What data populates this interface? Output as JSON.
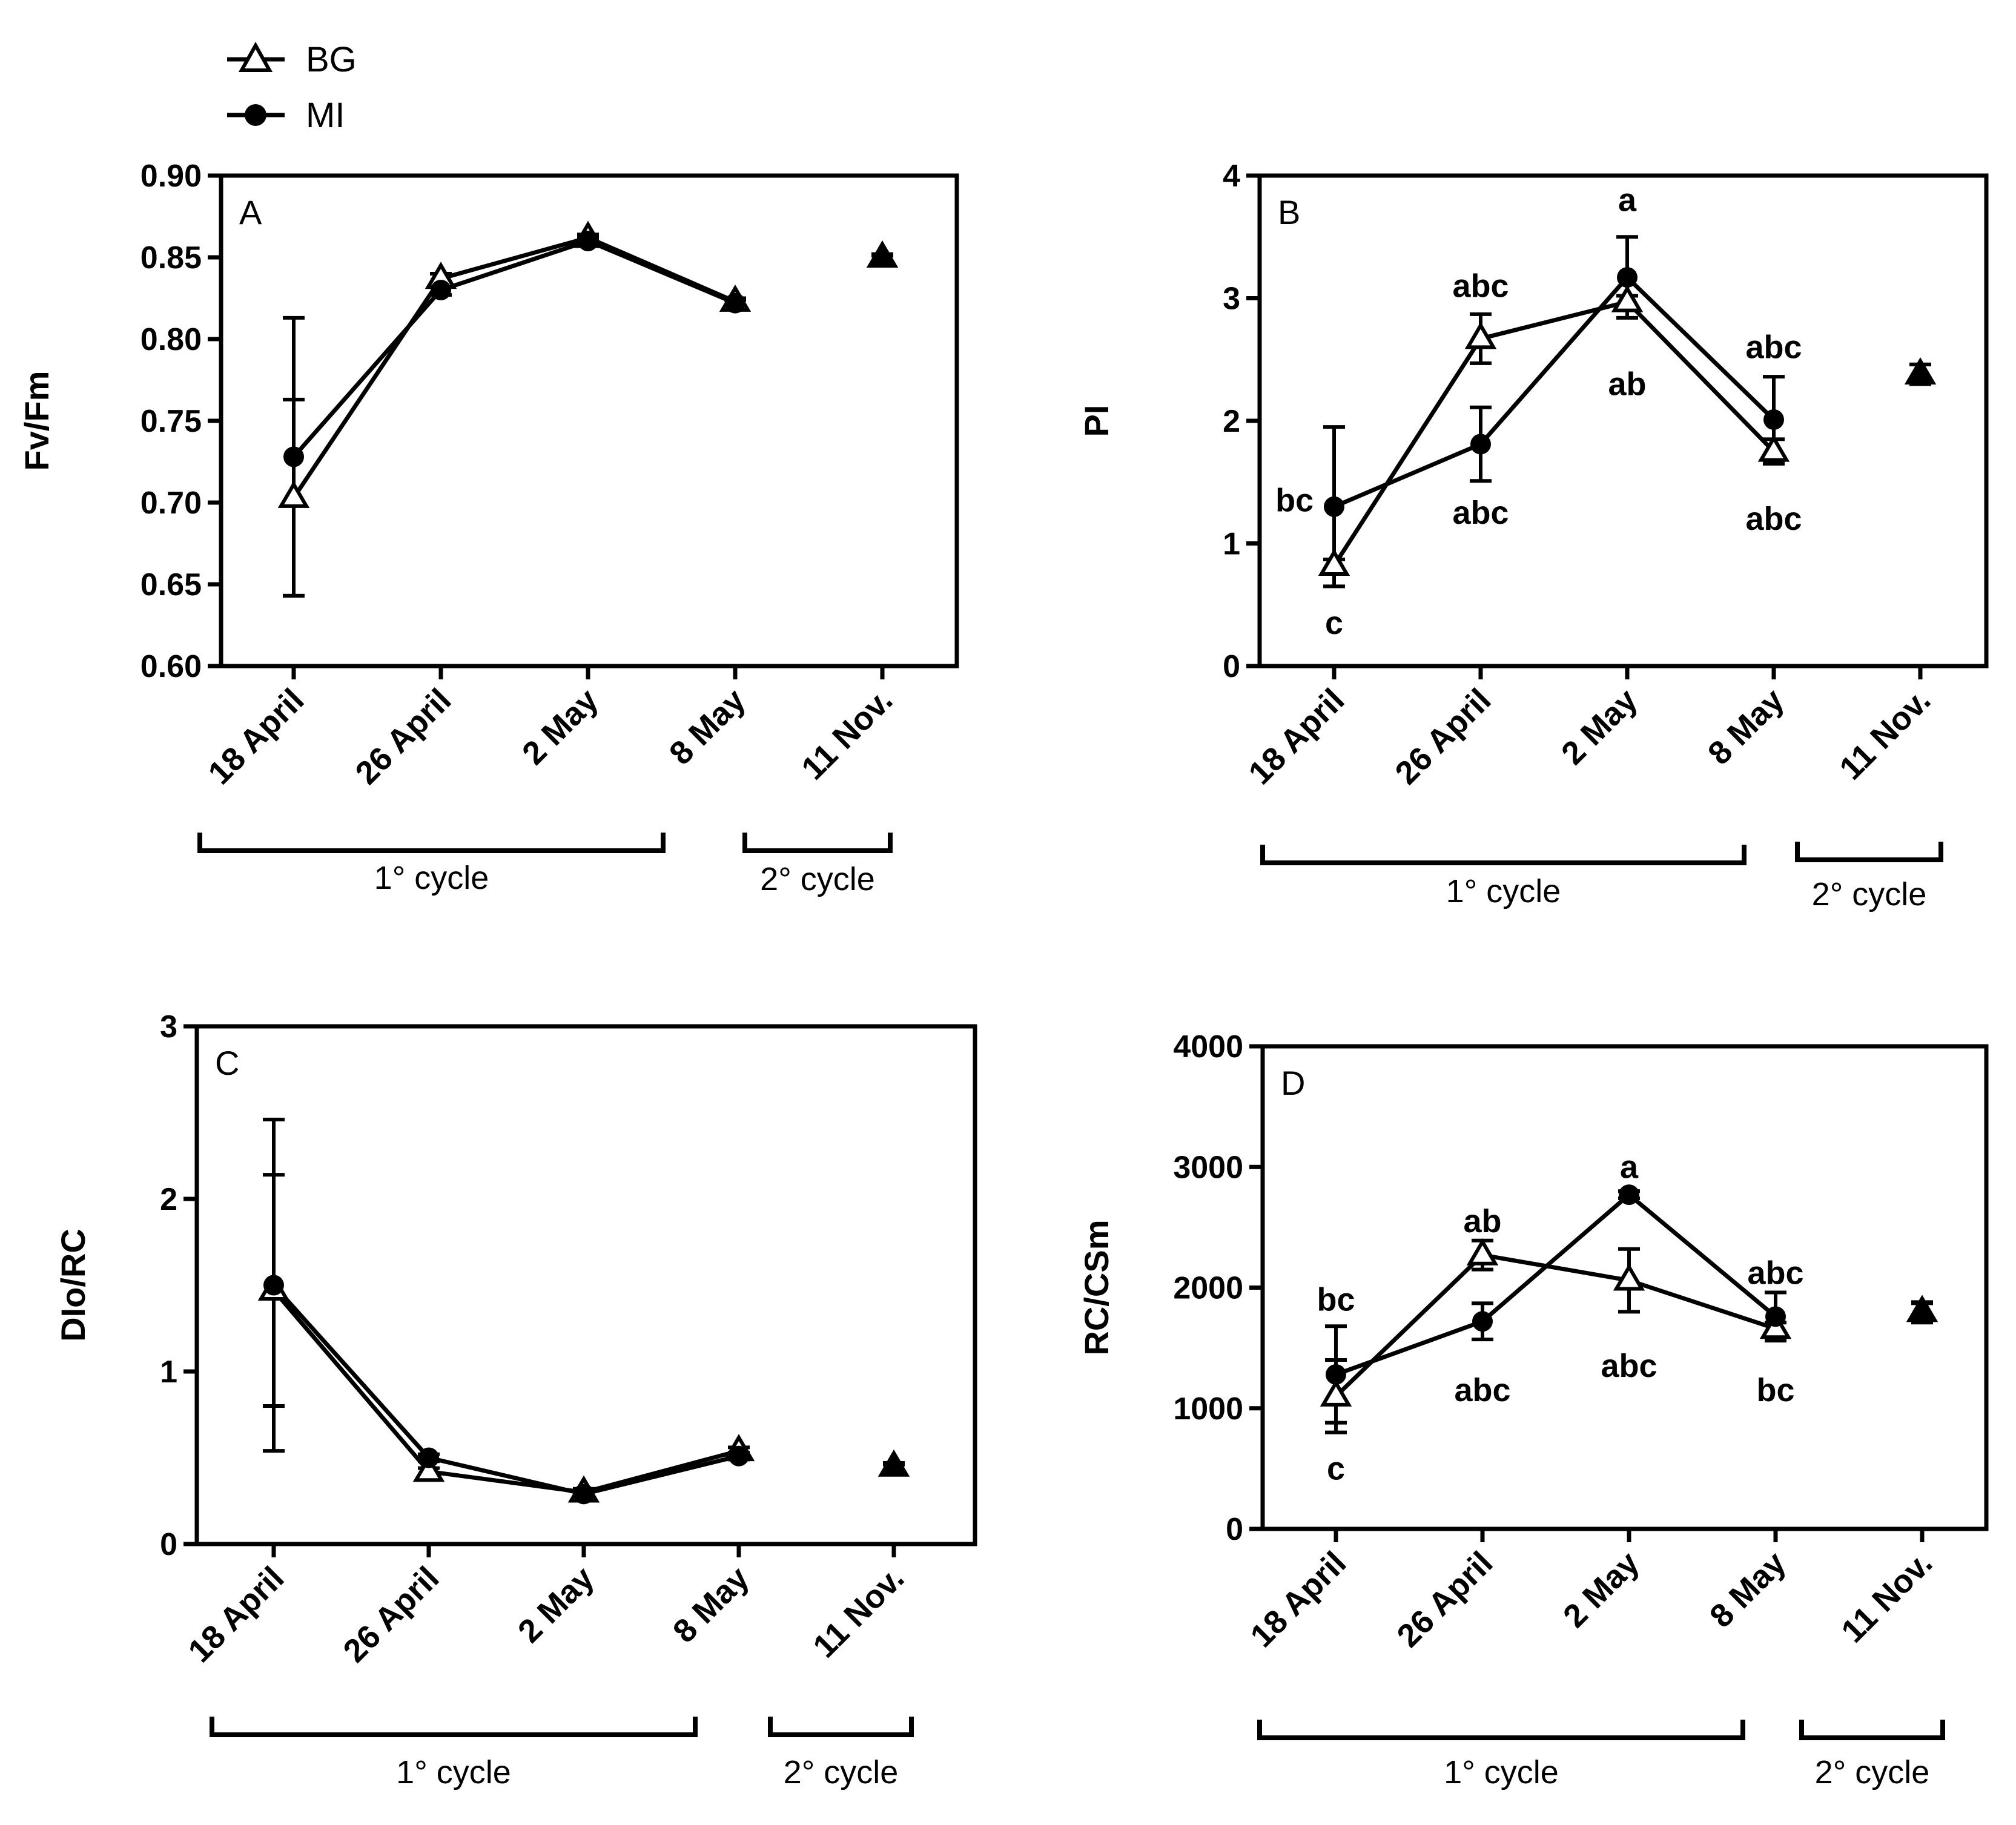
{
  "legend": [
    {
      "name": "BG",
      "marker": "open-triangle"
    },
    {
      "name": "MI",
      "marker": "filled-circle"
    }
  ],
  "cycle_labels": [
    "1° cycle",
    "2° cycle"
  ],
  "chart_data": [
    {
      "type": "line",
      "panel": "A",
      "ylabel": "Fv/Fm",
      "ylim": [
        0.6,
        0.9
      ],
      "yticks": [
        "0.60",
        "0.65",
        "0.70",
        "0.75",
        "0.80",
        "0.85",
        "0.90"
      ],
      "categories": [
        "18 April",
        "26 April",
        "2 May",
        "8 May",
        "11 Nov."
      ],
      "series": [
        {
          "name": "BG",
          "values": [
            0.703,
            0.837,
            0.862,
            0.823,
            0.85
          ],
          "errors": [
            0.06,
            0.003,
            0.002,
            0.002,
            0.002
          ]
        },
        {
          "name": "MI",
          "values": [
            0.728,
            0.83,
            0.86,
            0.822,
            0.849
          ],
          "errors": [
            0.085,
            0.003,
            0.002,
            0.002,
            0.002
          ]
        }
      ],
      "annotations": []
    },
    {
      "type": "line",
      "panel": "B",
      "ylabel": "PI",
      "ylim": [
        0,
        4
      ],
      "yticks": [
        "0",
        "1",
        "2",
        "3",
        "4"
      ],
      "categories": [
        "18 April",
        "26 April",
        "2 May",
        "8 May",
        "11 Nov."
      ],
      "series": [
        {
          "name": "BG",
          "values": [
            0.82,
            2.67,
            2.97,
            1.75,
            2.38
          ],
          "errors": [
            0.05,
            0.2,
            0.05,
            0.1,
            0.08
          ]
        },
        {
          "name": "MI",
          "values": [
            1.3,
            1.81,
            3.17,
            2.01,
            2.38
          ],
          "errors": [
            0.65,
            0.3,
            0.33,
            0.35,
            0.08
          ]
        }
      ],
      "annotations": [
        {
          "text": "bc",
          "category": 0,
          "value": 1.35,
          "dx": -0.27
        },
        {
          "text": "c",
          "category": 0,
          "value": 0.35,
          "dx": 0
        },
        {
          "text": "abc",
          "category": 1,
          "value": 3.1,
          "dx": 0
        },
        {
          "text": "abc",
          "category": 1,
          "value": 1.25,
          "dx": 0
        },
        {
          "text": "a",
          "category": 2,
          "value": 3.8,
          "dx": 0
        },
        {
          "text": "ab",
          "category": 2,
          "value": 2.3,
          "dx": 0
        },
        {
          "text": "abc",
          "category": 3,
          "value": 2.6,
          "dx": 0
        },
        {
          "text": "abc",
          "category": 3,
          "value": 1.2,
          "dx": 0
        }
      ]
    },
    {
      "type": "line",
      "panel": "C",
      "ylabel": "DIo/RC",
      "ylim": [
        0,
        3
      ],
      "yticks": [
        "0",
        "1",
        "2",
        "3"
      ],
      "categories": [
        "18 April",
        "26 April",
        "2 May",
        "8 May",
        "11 Nov."
      ],
      "series": [
        {
          "name": "BG",
          "values": [
            1.47,
            0.42,
            0.3,
            0.54,
            0.45
          ],
          "errors": [
            0.67,
            0.02,
            0.02,
            0.02,
            0.02
          ]
        },
        {
          "name": "MI",
          "values": [
            1.5,
            0.5,
            0.29,
            0.51,
            0.44
          ],
          "errors": [
            0.96,
            0.02,
            0.02,
            0.02,
            0.02
          ]
        }
      ],
      "annotations": []
    },
    {
      "type": "line",
      "panel": "D",
      "ylabel": "RC/CSm",
      "ylim": [
        0,
        4000
      ],
      "yticks": [
        "0",
        "1000",
        "2000",
        "3000",
        "4000"
      ],
      "categories": [
        "18 April",
        "26 April",
        "2 May",
        "8 May",
        "11 Nov."
      ],
      "series": [
        {
          "name": "BG",
          "values": [
            1100,
            2270,
            2060,
            1660,
            1800
          ],
          "errors": [
            300,
            120,
            260,
            50,
            80
          ]
        },
        {
          "name": "MI",
          "values": [
            1280,
            1720,
            2770,
            1760,
            1790
          ],
          "errors": [
            400,
            150,
            30,
            200,
            80
          ]
        }
      ],
      "annotations": [
        {
          "text": "bc",
          "category": 0,
          "value": 1900,
          "dx": 0
        },
        {
          "text": "c",
          "category": 0,
          "value": 500,
          "dx": 0
        },
        {
          "text": "ab",
          "category": 1,
          "value": 2550,
          "dx": 0
        },
        {
          "text": "abc",
          "category": 1,
          "value": 1150,
          "dx": 0
        },
        {
          "text": "a",
          "category": 2,
          "value": 3000,
          "dx": 0
        },
        {
          "text": "abc",
          "category": 2,
          "value": 1350,
          "dx": 0
        },
        {
          "text": "abc",
          "category": 3,
          "value": 2120,
          "dx": 0
        },
        {
          "text": "bc",
          "category": 3,
          "value": 1150,
          "dx": 0
        }
      ]
    }
  ]
}
